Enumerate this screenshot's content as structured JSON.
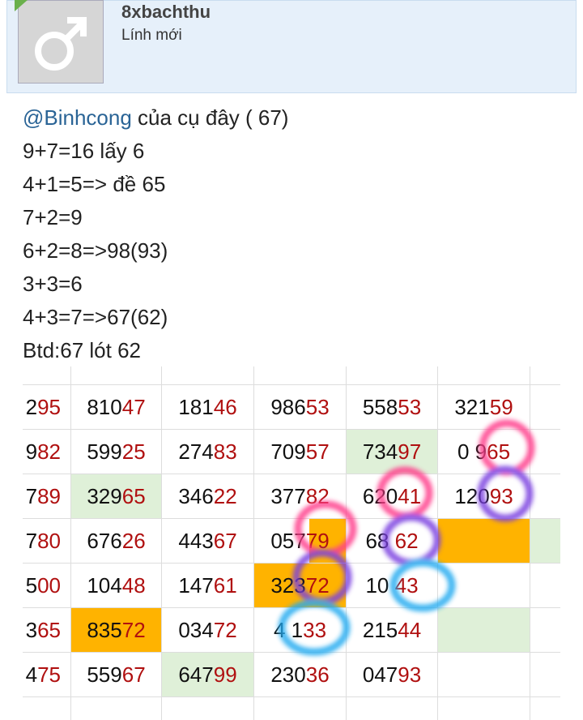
{
  "user": {
    "name": "8xbachthu",
    "rank": "Lính mới"
  },
  "post": {
    "mention": "@Binhcong",
    "first_line": " của cụ đây ( 67)",
    "lines": [
      "9+7=16 lấy 6",
      "4+1=5=> đề 65",
      "7+2=9",
      "6+2=8=>98(93)",
      "3+3=6",
      "4+3=7=>67(62)",
      "Btd:67 lót 62"
    ]
  },
  "table": {
    "rows": [
      [
        "295",
        "81047",
        "18146",
        "98653",
        "55853",
        "32159"
      ],
      [
        "982",
        "59925",
        "27483",
        "70957",
        "73497",
        "0 965"
      ],
      [
        "789",
        "32965",
        "34622",
        "37782",
        "62041",
        "12093"
      ],
      [
        "780",
        "67626",
        "44367",
        "05779",
        "68 62"
      ],
      [
        "500",
        "10448",
        "14761",
        "32372",
        "10 43"
      ],
      [
        "365",
        "83572",
        "03472",
        "4 133",
        "21544"
      ],
      [
        "475",
        "55967",
        "64799",
        "23036",
        "04793"
      ]
    ]
  }
}
